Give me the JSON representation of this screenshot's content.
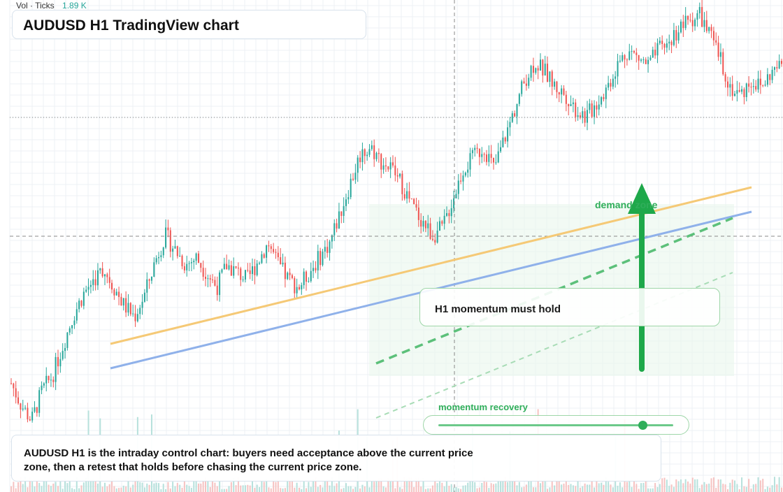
{
  "header": {
    "vol_label": "Vol · Ticks",
    "vol_value": "1.89 K",
    "title": "AUDUSD H1 TradingView chart"
  },
  "annotations": {
    "hold_note": "H1 momentum must hold",
    "zone_label": "demand zone",
    "recovery_label": "momentum recovery",
    "recovery_level": 0.87,
    "summary": "AUDUSD H1 is the intraday control chart: buyers need acceptance above the current price zone, then a retest that holds before chasing the current price zone."
  },
  "colors": {
    "up": "#26a69a",
    "down": "#ef5350",
    "trend_orange": "#f5c976",
    "trend_blue": "#8fb1ea",
    "green": "#2fae5a",
    "zone_fill": "#eaf7ec"
  },
  "chart_data": {
    "type": "candlestick",
    "symbol": "AUDUSD",
    "timeframe": "H1",
    "series": [
      {
        "name": "price",
        "close_path": [
          0.12,
          0.06,
          0.02,
          0.1,
          0.14,
          0.22,
          0.3,
          0.36,
          0.4,
          0.43,
          0.38,
          0.33,
          0.3,
          0.36,
          0.45,
          0.52,
          0.48,
          0.44,
          0.46,
          0.42,
          0.38,
          0.44,
          0.42,
          0.4,
          0.45,
          0.5,
          0.44,
          0.4,
          0.38,
          0.42,
          0.46,
          0.5,
          0.58,
          0.66,
          0.74,
          0.76,
          0.72,
          0.7,
          0.66,
          0.6,
          0.56,
          0.52,
          0.54,
          0.62,
          0.7,
          0.73,
          0.76,
          0.7,
          0.78,
          0.86,
          0.94,
          0.99,
          0.96,
          0.92,
          0.9,
          0.86,
          0.84,
          0.88,
          0.92,
          0.98,
          1.02,
          1.0,
          0.98,
          1.02,
          1.04,
          1.08,
          1.1,
          1.12,
          1.06,
          1.0,
          0.92,
          0.9,
          0.94,
          0.92,
          0.96,
          0.98
        ]
      }
    ],
    "trend_lines": [
      "orange trendline",
      "blue trendline"
    ]
  }
}
